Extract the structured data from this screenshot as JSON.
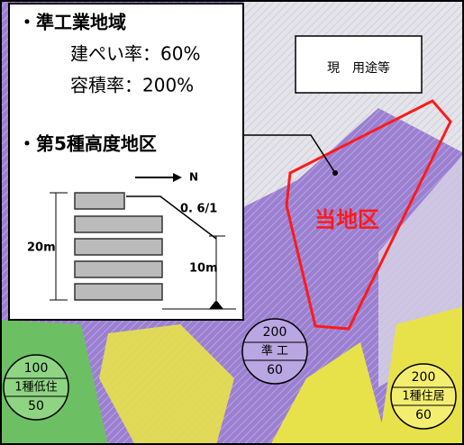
{
  "legend_box": {
    "zone_title": "・準工業地域",
    "coverage": "建ぺい率：60%",
    "floor_ratio": "容積率：200%",
    "height_district": "・第5種高度地区",
    "north": "N",
    "slope": "0. 6/1",
    "height_total": "20m",
    "height_base": "10m"
  },
  "label_box": "現　用途等",
  "site_label": "当地区",
  "zone_markers": [
    {
      "far": "200",
      "zone": "準 工",
      "coverage": "60"
    },
    {
      "far": "100",
      "zone": "1種低住",
      "coverage": "50"
    },
    {
      "far": "200",
      "zone": "1種住居",
      "coverage": "60"
    }
  ]
}
